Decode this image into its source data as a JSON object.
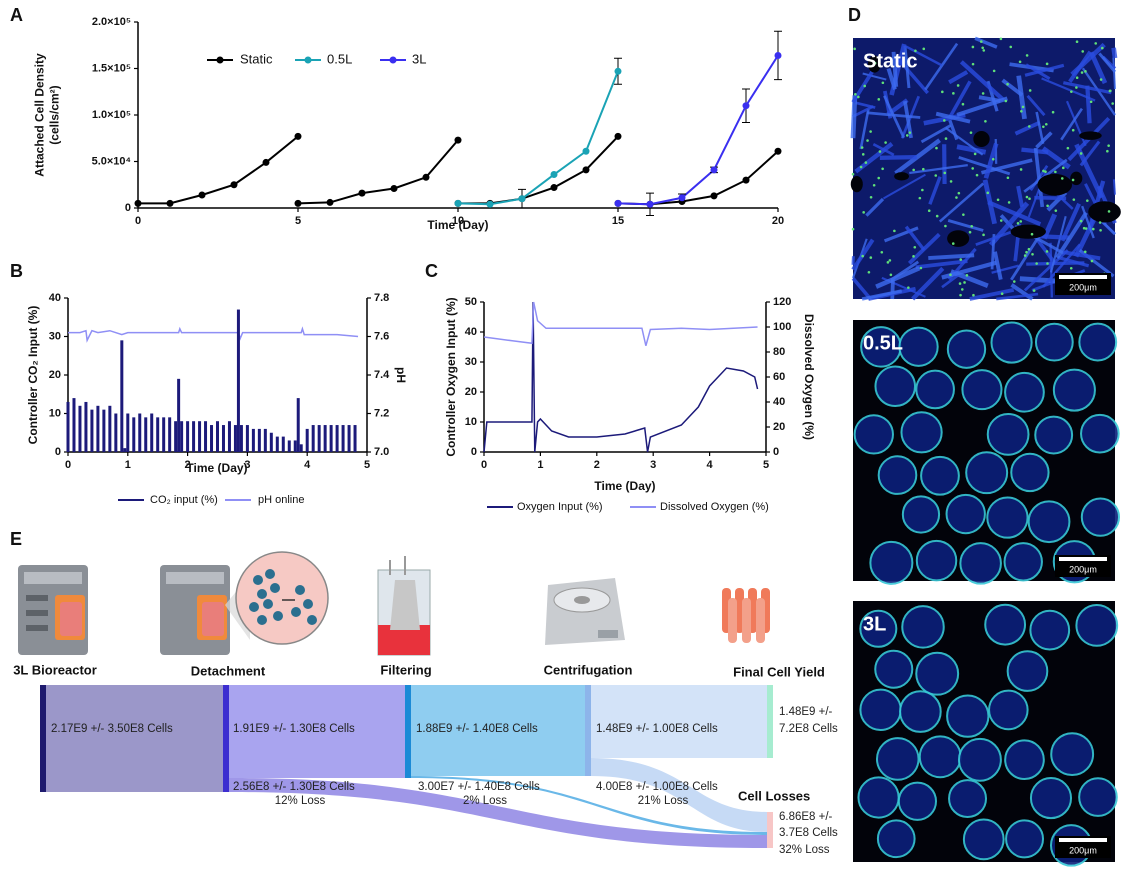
{
  "panel_labels": [
    "A",
    "B",
    "C",
    "D",
    "E"
  ],
  "chart_data": [
    {
      "type": "line",
      "xlabel": "Time (Day)",
      "ylabel": [
        "Attached Cell Density",
        "(cells/cm²)"
      ],
      "xlim": [
        0,
        20
      ],
      "xticks": [
        0,
        5,
        10,
        15,
        20
      ],
      "ylim": [
        0,
        200000
      ],
      "yticks": [
        0,
        {
          "value": 50000,
          "label": "5.0×10⁴"
        },
        {
          "value": 100000,
          "label": "1.0×10⁵"
        },
        {
          "value": 150000,
          "label": "1.5×10⁵"
        },
        {
          "value": 200000,
          "label": "2.0×10⁵"
        }
      ],
      "markers": true,
      "series": [
        {
          "name": "Static",
          "color": "#000000",
          "x": [
            0,
            1,
            2,
            3,
            4,
            5,
            5,
            5,
            6,
            7,
            8,
            9,
            10,
            10,
            10,
            11,
            12,
            13,
            14,
            15,
            15,
            15,
            16,
            17,
            18,
            19,
            20
          ],
          "values": [
            5000,
            5000,
            14000,
            25000,
            49000,
            77000,
            null,
            5000,
            6000,
            16000,
            21000,
            33000,
            73000,
            null,
            5000,
            5000,
            10000,
            22000,
            41000,
            77000,
            null,
            5000,
            4000,
            7000,
            13000,
            30000,
            61000
          ]
        },
        {
          "name": "0.5L",
          "color": "#1aa3b5",
          "x": [
            10,
            11,
            12,
            13,
            14,
            15
          ],
          "values": [
            5000,
            4000,
            10000,
            36000,
            61000,
            147000
          ],
          "errors": [
            null,
            null,
            10000,
            null,
            null,
            14000
          ]
        },
        {
          "name": "3L",
          "color": "#3a2ff0",
          "x": [
            15,
            16,
            17,
            18,
            19,
            20
          ],
          "values": [
            5000,
            4000,
            11000,
            41000,
            110000,
            164000
          ],
          "errors": [
            null,
            12000,
            4000,
            3000,
            18000,
            26000
          ]
        }
      ]
    },
    {
      "type": "line",
      "xlabel": "Time (Day)",
      "ylabel": [
        "Controller CO₂ Input (%)"
      ],
      "y2label": "pH",
      "xlim": [
        0,
        5
      ],
      "xticks": [
        0,
        1,
        2,
        3,
        4,
        5
      ],
      "ylim": [
        0,
        40
      ],
      "yticks": [
        0,
        10,
        20,
        30,
        40
      ],
      "y2lim": [
        7.0,
        7.8
      ],
      "y2ticks": [
        {
          "value": 7.0,
          "label": "7.0"
        },
        7.2,
        7.4,
        7.6,
        7.8
      ],
      "series": [
        {
          "name": "pH online",
          "color": "#8f8ff5",
          "axis": "y2",
          "x": [
            0,
            0.2,
            0.3,
            0.32,
            0.4,
            0.5,
            0.7,
            0.9,
            1.0,
            1.5,
            1.85,
            1.87,
            1.9,
            2.5,
            2.85,
            2.88,
            2.92,
            3.5,
            3.9,
            3.92,
            3.95,
            4.5,
            4.85
          ],
          "values": [
            7.62,
            7.62,
            7.63,
            7.58,
            7.63,
            7.62,
            7.63,
            7.61,
            7.62,
            7.62,
            7.62,
            7.64,
            7.62,
            7.62,
            7.62,
            7.59,
            7.62,
            7.62,
            7.62,
            7.64,
            7.61,
            7.61,
            7.6
          ]
        },
        {
          "name": "CO₂ input (%)",
          "color": "#1c1a7a",
          "style": "bar",
          "x": [
            0,
            0.1,
            0.2,
            0.3,
            0.4,
            0.5,
            0.6,
            0.7,
            0.8,
            0.9,
            0.95,
            1.0,
            1.1,
            1.2,
            1.3,
            1.4,
            1.5,
            1.6,
            1.7,
            1.8,
            1.85,
            1.9,
            2.0,
            2.1,
            2.2,
            2.3,
            2.4,
            2.5,
            2.6,
            2.7,
            2.8,
            2.85,
            2.9,
            3.0,
            3.1,
            3.2,
            3.3,
            3.4,
            3.5,
            3.6,
            3.7,
            3.8,
            3.85,
            3.9,
            4.0,
            4.1,
            4.2,
            4.3,
            4.4,
            4.5,
            4.6,
            4.7,
            4.8
          ],
          "values": [
            13,
            14,
            12,
            13,
            11,
            12,
            11,
            12,
            10,
            29,
            1,
            10,
            9,
            10,
            9,
            10,
            9,
            9,
            9,
            8,
            19,
            8,
            8,
            8,
            8,
            8,
            7,
            8,
            7,
            8,
            7,
            37,
            7,
            7,
            6,
            6,
            6,
            5,
            4,
            4,
            3,
            3,
            14,
            2,
            6,
            7,
            7,
            7,
            7,
            7,
            7,
            7,
            7
          ]
        }
      ]
    },
    {
      "type": "line",
      "xlabel": "Time (Day)",
      "ylabel": [
        "Controller Oxygen Input (%)"
      ],
      "y2label": "Dissolved Oxygen (%)",
      "xlim": [
        0,
        5
      ],
      "xticks": [
        0,
        1,
        2,
        3,
        4,
        5
      ],
      "ylim": [
        0,
        50
      ],
      "yticks": [
        0,
        10,
        20,
        30,
        40,
        50
      ],
      "y2lim": [
        0,
        120
      ],
      "y2ticks": [
        0,
        20,
        40,
        60,
        80,
        100,
        120
      ],
      "series": [
        {
          "name": "Oxygen Input (%)",
          "color": "#1c1a7a",
          "x": [
            0,
            0.05,
            0.85,
            0.87,
            0.9,
            0.95,
            1.0,
            1.2,
            1.5,
            2.0,
            2.5,
            2.85,
            2.9,
            2.95,
            3.5,
            3.8,
            4.0,
            4.3,
            4.6,
            4.8,
            4.85
          ],
          "values": [
            0,
            10,
            10,
            50,
            0,
            10,
            11,
            7,
            5,
            5,
            6,
            8,
            0,
            5,
            9,
            15,
            22,
            28,
            27,
            25,
            21
          ]
        },
        {
          "name": "Dissolved Oxygen (%)",
          "color": "#8f8ff5",
          "axis": "y2",
          "x": [
            0,
            0.5,
            0.85,
            0.88,
            0.95,
            1.1,
            2.8,
            2.87,
            2.95,
            3.5,
            4.0,
            4.85
          ],
          "values": [
            92,
            89,
            87,
            120,
            105,
            99,
            99,
            85,
            98,
            99,
            98,
            100
          ]
        }
      ]
    }
  ],
  "micrographs": [
    {
      "label": "Static",
      "scale_bar": "200μm"
    },
    {
      "label": "0.5L",
      "scale_bar": "200μm"
    },
    {
      "label": "3L",
      "scale_bar": "200μm"
    }
  ],
  "process": {
    "stages": [
      "3L Bioreactor",
      "Detachment",
      "Filtering",
      "Centrifugation",
      "Final Cell Yield"
    ],
    "nodes": [
      "2.17E9 +/- 3.50E8 Cells",
      "1.91E9 +/- 1.30E8 Cells",
      "1.88E9 +/- 1.40E8 Cells",
      "1.48E9 +/- 1.00E8 Cells"
    ],
    "final": [
      "1.48E9 +/-",
      "7.2E8 Cells"
    ],
    "losses": [
      {
        "cells": "2.56E8 +/- 1.30E8 Cells",
        "percent": "12% Loss"
      },
      {
        "cells": "3.00E7 +/- 1.40E8 Cells",
        "percent": "2% Loss"
      },
      {
        "cells": "4.00E8 +/- 1.00E8 Cells",
        "percent": "21% Loss"
      }
    ],
    "cell_losses": {
      "title": "Cell Losses",
      "lines": [
        "6.86E8 +/-",
        "3.7E8 Cells",
        "32% Loss"
      ]
    }
  }
}
